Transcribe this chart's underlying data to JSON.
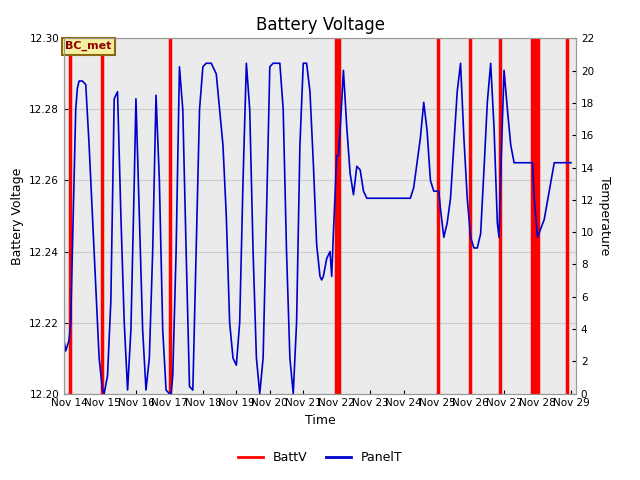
{
  "title": "Battery Voltage",
  "xlabel": "Time",
  "ylabel_left": "Battery Voltage",
  "ylabel_right": "Temperature",
  "ylim_left": [
    12.2,
    12.3
  ],
  "ylim_right": [
    0,
    22
  ],
  "yticks_left": [
    12.2,
    12.22,
    12.24,
    12.26,
    12.28,
    12.3
  ],
  "yticks_right": [
    0,
    2,
    4,
    6,
    8,
    10,
    12,
    14,
    16,
    18,
    20,
    22
  ],
  "annotation_text": "BC_met",
  "annotation_bg": "#f5f0a0",
  "annotation_border": "#8b6914",
  "annotation_text_color": "#8b0000",
  "red_line_color": "#ff0000",
  "blue_line_color": "#0000cc",
  "grid_color": "#cccccc",
  "bg_color": "#ffffff",
  "plot_bg_color": "#ebebeb",
  "legend_red_label": "BattV",
  "legend_blue_label": "PanelT",
  "title_fontsize": 12,
  "axis_label_fontsize": 9,
  "tick_fontsize": 7.5,
  "red_line_positions": [
    14.02,
    15.0,
    17.02,
    21.98,
    22.08,
    25.02,
    25.98,
    26.87,
    27.83,
    27.93,
    28.02,
    28.87
  ],
  "red_line_widths": [
    3.0,
    3.0,
    3.0,
    3.0,
    3.0,
    3.0,
    3.0,
    3.0,
    3.0,
    3.0,
    3.0,
    3.0
  ],
  "xtick_positions": [
    14,
    15,
    16,
    17,
    18,
    19,
    20,
    21,
    22,
    23,
    24,
    25,
    26,
    27,
    28,
    29
  ],
  "xtick_labels": [
    "Nov 14",
    "Nov 15",
    "Nov 16",
    "Nov 17",
    "Nov 18",
    "Nov 19",
    "Nov 20",
    "Nov 21",
    "Nov 22",
    "Nov 23",
    "Nov 24",
    "Nov 25",
    "Nov 26",
    "Nov 27",
    "Nov 28",
    "Nov 29"
  ],
  "xlim": [
    13.85,
    29.15
  ],
  "blue_t": [
    13.85,
    13.9,
    14.0,
    14.05,
    14.1,
    14.15,
    14.2,
    14.25,
    14.3,
    14.4,
    14.5,
    14.6,
    14.7,
    14.8,
    14.9,
    15.0,
    15.0,
    15.05,
    15.15,
    15.25,
    15.35,
    15.45,
    15.55,
    15.65,
    15.75,
    15.85,
    15.95,
    16.0,
    16.0,
    16.1,
    16.2,
    16.3,
    16.4,
    16.5,
    16.6,
    16.7,
    16.8,
    16.9,
    17.0,
    17.0,
    17.05,
    17.1,
    17.2,
    17.3,
    17.4,
    17.5,
    17.6,
    17.7,
    17.8,
    17.9,
    18.0,
    18.0,
    18.1,
    18.2,
    18.25,
    18.3,
    18.4,
    18.5,
    18.6,
    18.7,
    18.8,
    18.9,
    19.0,
    19.0,
    19.1,
    19.2,
    19.3,
    19.4,
    19.5,
    19.6,
    19.7,
    19.8,
    19.9,
    20.0,
    20.0,
    20.1,
    20.2,
    20.3,
    20.4,
    20.5,
    20.6,
    20.7,
    20.8,
    20.9,
    21.0,
    21.0,
    21.1,
    21.2,
    21.3,
    21.4,
    21.5,
    21.55,
    21.6,
    21.7,
    21.8,
    21.85,
    21.85,
    21.9,
    22.0,
    22.05,
    22.1,
    22.2,
    22.3,
    22.4,
    22.5,
    22.6,
    22.7,
    22.8,
    22.9,
    23.0,
    23.0,
    23.2,
    23.4,
    23.6,
    23.8,
    24.0,
    24.0,
    24.2,
    24.3,
    24.5,
    24.6,
    24.7,
    24.8,
    24.9,
    25.0,
    25.0,
    25.05,
    25.1,
    25.2,
    25.3,
    25.4,
    25.5,
    25.6,
    25.7,
    25.8,
    25.9,
    26.0,
    26.0,
    26.1,
    26.2,
    26.3,
    26.4,
    26.5,
    26.6,
    26.7,
    26.8,
    26.85,
    26.85,
    26.9,
    27.0,
    27.1,
    27.2,
    27.3,
    27.5,
    27.7,
    27.85,
    27.85,
    27.9,
    28.0,
    28.2,
    28.5,
    28.7,
    29.0
  ],
  "blue_v": [
    12.215,
    12.212,
    12.215,
    12.22,
    12.24,
    12.26,
    12.28,
    12.286,
    12.288,
    12.288,
    12.287,
    12.27,
    12.25,
    12.23,
    12.21,
    12.201,
    12.201,
    12.2,
    12.205,
    12.226,
    12.283,
    12.285,
    12.25,
    12.22,
    12.201,
    12.218,
    12.26,
    12.283,
    12.283,
    12.25,
    12.218,
    12.201,
    12.21,
    12.24,
    12.284,
    12.26,
    12.218,
    12.201,
    12.2,
    12.2,
    12.2,
    12.205,
    12.24,
    12.292,
    12.28,
    12.24,
    12.202,
    12.201,
    12.24,
    12.28,
    12.292,
    12.292,
    12.293,
    12.293,
    12.293,
    12.292,
    12.29,
    12.28,
    12.27,
    12.25,
    12.22,
    12.21,
    12.208,
    12.208,
    12.22,
    12.26,
    12.293,
    12.28,
    12.24,
    12.21,
    12.2,
    12.21,
    12.25,
    12.292,
    12.292,
    12.293,
    12.293,
    12.293,
    12.28,
    12.24,
    12.21,
    12.2,
    12.22,
    12.27,
    12.293,
    12.293,
    12.293,
    12.285,
    12.265,
    12.242,
    12.233,
    12.232,
    12.233,
    12.238,
    12.24,
    12.233,
    12.233,
    12.245,
    12.267,
    12.267,
    12.274,
    12.291,
    12.275,
    12.262,
    12.256,
    12.264,
    12.263,
    12.257,
    12.255,
    12.255,
    12.255,
    12.255,
    12.255,
    12.255,
    12.255,
    12.255,
    12.255,
    12.255,
    12.258,
    12.272,
    12.282,
    12.274,
    12.26,
    12.257,
    12.257,
    12.257,
    12.257,
    12.252,
    12.244,
    12.248,
    12.255,
    12.27,
    12.285,
    12.293,
    12.272,
    12.255,
    12.244,
    12.244,
    12.241,
    12.241,
    12.245,
    12.263,
    12.282,
    12.293,
    12.275,
    12.248,
    12.244,
    12.244,
    12.262,
    12.291,
    12.28,
    12.27,
    12.265,
    12.265,
    12.265,
    12.265,
    12.265,
    12.255,
    12.244,
    12.249,
    12.265,
    12.265,
    12.265
  ]
}
